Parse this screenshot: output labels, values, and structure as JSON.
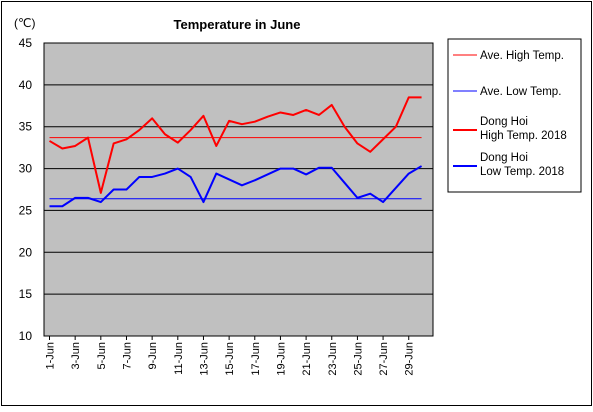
{
  "chart_data": {
    "type": "line",
    "title": "Temperature in June",
    "unit_label": "(℃)",
    "ylim": [
      10,
      45
    ],
    "y_ticks": [
      "10",
      "15",
      "20",
      "25",
      "30",
      "35",
      "40",
      "45"
    ],
    "x_ticks": [
      "1-Jun",
      "3-Jun",
      "5-Jun",
      "7-Jun",
      "9-Jun",
      "11-Jun",
      "13-Jun",
      "15-Jun",
      "17-Jun",
      "19-Jun",
      "21-Jun",
      "23-Jun",
      "25-Jun",
      "27-Jun",
      "29-Jun"
    ],
    "days": [
      1,
      2,
      3,
      4,
      5,
      6,
      7,
      8,
      9,
      10,
      11,
      12,
      13,
      14,
      15,
      16,
      17,
      18,
      19,
      20,
      21,
      22,
      23,
      24,
      25,
      26,
      27,
      28,
      29,
      30
    ],
    "grid": true,
    "legend_position": "right",
    "series": [
      {
        "name": "Ave. High Temp.",
        "color": "#ff0000",
        "style": "thin",
        "values": [
          33.7,
          33.7,
          33.7,
          33.7,
          33.7,
          33.7,
          33.7,
          33.7,
          33.7,
          33.7,
          33.7,
          33.7,
          33.7,
          33.7,
          33.7,
          33.7,
          33.7,
          33.7,
          33.7,
          33.7,
          33.7,
          33.7,
          33.7,
          33.7,
          33.7,
          33.7,
          33.7,
          33.7,
          33.7,
          33.7
        ]
      },
      {
        "name": "Ave. Low Temp.",
        "color": "#0000ff",
        "style": "thin",
        "values": [
          26.4,
          26.4,
          26.4,
          26.4,
          26.4,
          26.4,
          26.4,
          26.4,
          26.4,
          26.4,
          26.4,
          26.4,
          26.4,
          26.4,
          26.4,
          26.4,
          26.4,
          26.4,
          26.4,
          26.4,
          26.4,
          26.4,
          26.4,
          26.4,
          26.4,
          26.4,
          26.4,
          26.4,
          26.4,
          26.4
        ]
      },
      {
        "name": "Dong Hoi\nHigh Temp. 2018",
        "color": "#ff0000",
        "style": "thick",
        "values": [
          33.3,
          32.4,
          32.7,
          33.7,
          27.1,
          33.0,
          33.5,
          34.6,
          36.0,
          34.1,
          33.1,
          34.6,
          36.3,
          32.7,
          35.7,
          35.3,
          35.6,
          36.2,
          36.7,
          36.4,
          37.0,
          36.4,
          37.6,
          35.0,
          33.0,
          32.0,
          33.5,
          35.0,
          38.5,
          38.5
        ]
      },
      {
        "name": "Dong Hoi\nLow Temp. 2018",
        "color": "#0000ff",
        "style": "thick",
        "values": [
          25.5,
          25.5,
          26.5,
          26.5,
          26.0,
          27.5,
          27.5,
          29.0,
          29.0,
          29.4,
          30.0,
          29.0,
          26.0,
          29.4,
          28.7,
          28.0,
          28.6,
          29.3,
          30.0,
          30.0,
          29.3,
          30.1,
          30.1,
          28.3,
          26.5,
          27.0,
          26.0,
          27.7,
          29.4,
          30.3
        ]
      }
    ]
  }
}
